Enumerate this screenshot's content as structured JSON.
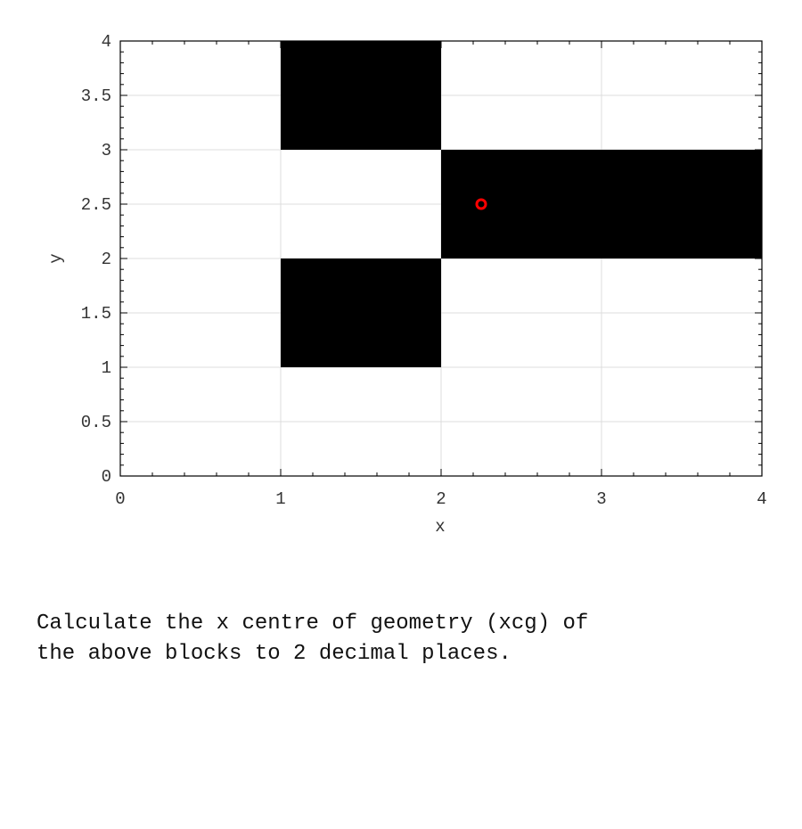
{
  "chart_data": {
    "type": "filled-rectangles",
    "xlabel": "x",
    "ylabel": "y",
    "xlim": [
      0,
      4
    ],
    "ylim": [
      0,
      4
    ],
    "xticks": [
      "0",
      "1",
      "2",
      "3",
      "4"
    ],
    "yticks": [
      "0",
      "0.5",
      "1",
      "1.5",
      "2",
      "2.5",
      "3",
      "3.5",
      "4"
    ],
    "x_tick_values": [
      0,
      1,
      2,
      3,
      4
    ],
    "y_tick_values": [
      0,
      0.5,
      1,
      1.5,
      2,
      2.5,
      3,
      3.5,
      4
    ],
    "x_minor_step": 0.2,
    "y_minor_step": 0.1,
    "grid": true,
    "block_color": "#000000",
    "blocks": [
      {
        "x": [
          1,
          2
        ],
        "y": [
          3,
          4
        ]
      },
      {
        "x": [
          2,
          4
        ],
        "y": [
          2,
          3
        ]
      },
      {
        "x": [
          1,
          2
        ],
        "y": [
          1,
          2
        ]
      }
    ],
    "marker": {
      "x": 2.25,
      "y": 2.5,
      "shape": "circle",
      "color": "#ff0000"
    }
  },
  "question": "Calculate the x centre of geometry (xcg) of\nthe above blocks to 2 decimal places."
}
